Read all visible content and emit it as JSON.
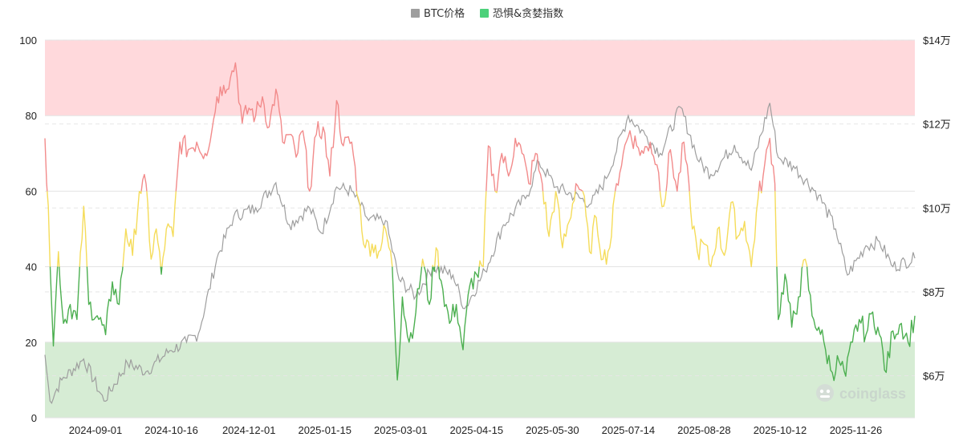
{
  "chart_data": {
    "type": "line",
    "title": "",
    "colors": {
      "btc": "#9e9e9e",
      "fg_green": "#4caf50",
      "fg_yellow": "#f5dc5a",
      "fg_red": "#f28b8b",
      "legend_btc": "#9e9e9e",
      "legend_fg": "#4cd17a",
      "greed_band": "#ffd9dc",
      "fear_band": "#d6ecd4"
    },
    "legend": {
      "placement": "top-center",
      "items": [
        {
          "name": "BTC价格",
          "color_key": "legend_btc"
        },
        {
          "name": "恐惧&贪婪指数",
          "color_key": "legend_fg"
        }
      ]
    },
    "x_tick_labels": [
      "2024-09-01",
      "2024-10-16",
      "2024-12-01",
      "2025-01-15",
      "2025-03-01",
      "2025-04-15",
      "2025-05-30",
      "2025-07-14",
      "2025-08-28",
      "2025-10-12",
      "2025-11-26"
    ],
    "left_axis": {
      "label": "",
      "range": [
        0,
        100
      ],
      "ticks": [
        "0",
        "20",
        "40",
        "60",
        "80",
        "100"
      ]
    },
    "right_axis": {
      "label": "",
      "range": [
        50000,
        140000
      ],
      "ticks": [
        "$6万",
        "$8万",
        "$10万",
        "$12万",
        "$14万"
      ],
      "tick_values": [
        60000,
        80000,
        100000,
        120000,
        140000
      ]
    },
    "zones": [
      {
        "name": "greed",
        "from": 80,
        "to": 100
      },
      {
        "name": "fear",
        "from": 0,
        "to": 20
      }
    ],
    "fg_thresholds": {
      "yellow_from": 40,
      "red_from": 60
    },
    "grid": true,
    "fg_anchors": [
      {
        "x": "2024-08-02",
        "y": 74
      },
      {
        "x": "2024-08-04",
        "y": 56
      },
      {
        "x": "2024-08-07",
        "y": 19
      },
      {
        "x": "2024-08-10",
        "y": 44
      },
      {
        "x": "2024-08-13",
        "y": 25
      },
      {
        "x": "2024-08-17",
        "y": 30
      },
      {
        "x": "2024-08-21",
        "y": 26
      },
      {
        "x": "2024-08-25",
        "y": 56
      },
      {
        "x": "2024-08-28",
        "y": 30
      },
      {
        "x": "2024-09-02",
        "y": 27
      },
      {
        "x": "2024-09-07",
        "y": 22
      },
      {
        "x": "2024-09-11",
        "y": 36
      },
      {
        "x": "2024-09-15",
        "y": 30
      },
      {
        "x": "2024-09-19",
        "y": 50
      },
      {
        "x": "2024-09-23",
        "y": 43
      },
      {
        "x": "2024-09-27",
        "y": 60
      },
      {
        "x": "2024-10-01",
        "y": 62
      },
      {
        "x": "2024-10-04",
        "y": 42
      },
      {
        "x": "2024-10-07",
        "y": 50
      },
      {
        "x": "2024-10-10",
        "y": 38
      },
      {
        "x": "2024-10-13",
        "y": 50
      },
      {
        "x": "2024-10-17",
        "y": 48
      },
      {
        "x": "2024-10-21",
        "y": 73
      },
      {
        "x": "2024-10-26",
        "y": 71
      },
      {
        "x": "2024-10-31",
        "y": 73
      },
      {
        "x": "2024-11-05",
        "y": 70
      },
      {
        "x": "2024-11-09",
        "y": 76
      },
      {
        "x": "2024-11-12",
        "y": 85
      },
      {
        "x": "2024-11-16",
        "y": 88
      },
      {
        "x": "2024-11-20",
        "y": 90
      },
      {
        "x": "2024-11-23",
        "y": 94
      },
      {
        "x": "2024-11-27",
        "y": 78
      },
      {
        "x": "2024-12-01",
        "y": 82
      },
      {
        "x": "2024-12-05",
        "y": 80
      },
      {
        "x": "2024-12-09",
        "y": 85
      },
      {
        "x": "2024-12-13",
        "y": 77
      },
      {
        "x": "2024-12-17",
        "y": 87
      },
      {
        "x": "2024-12-21",
        "y": 73
      },
      {
        "x": "2024-12-25",
        "y": 75
      },
      {
        "x": "2024-12-29",
        "y": 69
      },
      {
        "x": "2025-01-02",
        "y": 76
      },
      {
        "x": "2025-01-06",
        "y": 60
      },
      {
        "x": "2025-01-10",
        "y": 75
      },
      {
        "x": "2025-01-14",
        "y": 77
      },
      {
        "x": "2025-01-18",
        "y": 64
      },
      {
        "x": "2025-01-22",
        "y": 84
      },
      {
        "x": "2025-01-26",
        "y": 72
      },
      {
        "x": "2025-01-31",
        "y": 73
      },
      {
        "x": "2025-02-04",
        "y": 58
      },
      {
        "x": "2025-02-08",
        "y": 45
      },
      {
        "x": "2025-02-12",
        "y": 46
      },
      {
        "x": "2025-02-16",
        "y": 44
      },
      {
        "x": "2025-02-20",
        "y": 50
      },
      {
        "x": "2025-02-24",
        "y": 40
      },
      {
        "x": "2025-02-27",
        "y": 10
      },
      {
        "x": "2025-03-02",
        "y": 32
      },
      {
        "x": "2025-03-06",
        "y": 20
      },
      {
        "x": "2025-03-10",
        "y": 28
      },
      {
        "x": "2025-03-14",
        "y": 42
      },
      {
        "x": "2025-03-18",
        "y": 30
      },
      {
        "x": "2025-03-22",
        "y": 45
      },
      {
        "x": "2025-03-26",
        "y": 34
      },
      {
        "x": "2025-03-30",
        "y": 25
      },
      {
        "x": "2025-04-03",
        "y": 30
      },
      {
        "x": "2025-04-07",
        "y": 18
      },
      {
        "x": "2025-04-11",
        "y": 35
      },
      {
        "x": "2025-04-15",
        "y": 38
      },
      {
        "x": "2025-04-19",
        "y": 40
      },
      {
        "x": "2025-04-22",
        "y": 72
      },
      {
        "x": "2025-04-26",
        "y": 60
      },
      {
        "x": "2025-04-30",
        "y": 70
      },
      {
        "x": "2025-05-04",
        "y": 64
      },
      {
        "x": "2025-05-08",
        "y": 74
      },
      {
        "x": "2025-05-12",
        "y": 70
      },
      {
        "x": "2025-05-16",
        "y": 62
      },
      {
        "x": "2025-05-20",
        "y": 70
      },
      {
        "x": "2025-05-24",
        "y": 62
      },
      {
        "x": "2025-05-28",
        "y": 48
      },
      {
        "x": "2025-06-01",
        "y": 60
      },
      {
        "x": "2025-06-05",
        "y": 45
      },
      {
        "x": "2025-06-09",
        "y": 52
      },
      {
        "x": "2025-06-13",
        "y": 62
      },
      {
        "x": "2025-06-17",
        "y": 60
      },
      {
        "x": "2025-06-21",
        "y": 44
      },
      {
        "x": "2025-06-25",
        "y": 53
      },
      {
        "x": "2025-06-29",
        "y": 42
      },
      {
        "x": "2025-07-03",
        "y": 45
      },
      {
        "x": "2025-07-07",
        "y": 62
      },
      {
        "x": "2025-07-11",
        "y": 70
      },
      {
        "x": "2025-07-15",
        "y": 76
      },
      {
        "x": "2025-07-19",
        "y": 72
      },
      {
        "x": "2025-07-23",
        "y": 70
      },
      {
        "x": "2025-07-27",
        "y": 73
      },
      {
        "x": "2025-07-31",
        "y": 67
      },
      {
        "x": "2025-08-04",
        "y": 56
      },
      {
        "x": "2025-08-08",
        "y": 71
      },
      {
        "x": "2025-08-12",
        "y": 60
      },
      {
        "x": "2025-08-16",
        "y": 73
      },
      {
        "x": "2025-08-20",
        "y": 55
      },
      {
        "x": "2025-08-24",
        "y": 44
      },
      {
        "x": "2025-08-28",
        "y": 46
      },
      {
        "x": "2025-09-01",
        "y": 40
      },
      {
        "x": "2025-09-05",
        "y": 50
      },
      {
        "x": "2025-09-09",
        "y": 43
      },
      {
        "x": "2025-09-13",
        "y": 57
      },
      {
        "x": "2025-09-17",
        "y": 48
      },
      {
        "x": "2025-09-21",
        "y": 52
      },
      {
        "x": "2025-09-25",
        "y": 40
      },
      {
        "x": "2025-09-29",
        "y": 58
      },
      {
        "x": "2025-10-02",
        "y": 64
      },
      {
        "x": "2025-10-06",
        "y": 74
      },
      {
        "x": "2025-10-09",
        "y": 62
      },
      {
        "x": "2025-10-11",
        "y": 26
      },
      {
        "x": "2025-10-15",
        "y": 38
      },
      {
        "x": "2025-10-19",
        "y": 24
      },
      {
        "x": "2025-10-23",
        "y": 32
      },
      {
        "x": "2025-10-27",
        "y": 42
      },
      {
        "x": "2025-10-31",
        "y": 27
      },
      {
        "x": "2025-11-04",
        "y": 24
      },
      {
        "x": "2025-11-08",
        "y": 18
      },
      {
        "x": "2025-11-12",
        "y": 12
      },
      {
        "x": "2025-11-16",
        "y": 15
      },
      {
        "x": "2025-11-20",
        "y": 11
      },
      {
        "x": "2025-11-24",
        "y": 20
      },
      {
        "x": "2025-11-28",
        "y": 26
      },
      {
        "x": "2025-12-02",
        "y": 22
      },
      {
        "x": "2025-12-06",
        "y": 28
      },
      {
        "x": "2025-12-10",
        "y": 22
      },
      {
        "x": "2025-12-14",
        "y": 12
      },
      {
        "x": "2025-12-18",
        "y": 23
      },
      {
        "x": "2025-12-23",
        "y": 25
      },
      {
        "x": "2025-12-27",
        "y": 20
      },
      {
        "x": "2025-12-31",
        "y": 27
      }
    ],
    "btc_anchors": [
      {
        "x": "2024-08-02",
        "y": 65000
      },
      {
        "x": "2024-08-05",
        "y": 54000
      },
      {
        "x": "2024-08-12",
        "y": 59000
      },
      {
        "x": "2024-08-25",
        "y": 64000
      },
      {
        "x": "2024-09-06",
        "y": 54000
      },
      {
        "x": "2024-09-20",
        "y": 63000
      },
      {
        "x": "2024-10-01",
        "y": 61000
      },
      {
        "x": "2024-10-15",
        "y": 66000
      },
      {
        "x": "2024-10-25",
        "y": 68000
      },
      {
        "x": "2024-11-01",
        "y": 70000
      },
      {
        "x": "2024-11-12",
        "y": 88000
      },
      {
        "x": "2024-11-22",
        "y": 98000
      },
      {
        "x": "2024-12-05",
        "y": 100000
      },
      {
        "x": "2024-12-17",
        "y": 106000
      },
      {
        "x": "2024-12-25",
        "y": 96000
      },
      {
        "x": "2025-01-06",
        "y": 100000
      },
      {
        "x": "2025-01-13",
        "y": 94000
      },
      {
        "x": "2025-01-22",
        "y": 105000
      },
      {
        "x": "2025-01-31",
        "y": 104000
      },
      {
        "x": "2025-02-10",
        "y": 97000
      },
      {
        "x": "2025-02-20",
        "y": 97000
      },
      {
        "x": "2025-02-28",
        "y": 83000
      },
      {
        "x": "2025-03-10",
        "y": 79000
      },
      {
        "x": "2025-03-20",
        "y": 86000
      },
      {
        "x": "2025-04-01",
        "y": 84000
      },
      {
        "x": "2025-04-08",
        "y": 76000
      },
      {
        "x": "2025-04-20",
        "y": 85000
      },
      {
        "x": "2025-05-01",
        "y": 96000
      },
      {
        "x": "2025-05-15",
        "y": 103000
      },
      {
        "x": "2025-05-22",
        "y": 111000
      },
      {
        "x": "2025-06-01",
        "y": 105000
      },
      {
        "x": "2025-06-22",
        "y": 101000
      },
      {
        "x": "2025-07-01",
        "y": 107000
      },
      {
        "x": "2025-07-14",
        "y": 122000
      },
      {
        "x": "2025-07-25",
        "y": 117000
      },
      {
        "x": "2025-08-02",
        "y": 113000
      },
      {
        "x": "2025-08-14",
        "y": 124000
      },
      {
        "x": "2025-08-25",
        "y": 111000
      },
      {
        "x": "2025-09-01",
        "y": 108000
      },
      {
        "x": "2025-09-15",
        "y": 115000
      },
      {
        "x": "2025-09-25",
        "y": 109000
      },
      {
        "x": "2025-10-06",
        "y": 125000
      },
      {
        "x": "2025-10-11",
        "y": 112000
      },
      {
        "x": "2025-10-20",
        "y": 110000
      },
      {
        "x": "2025-11-04",
        "y": 103000
      },
      {
        "x": "2025-11-14",
        "y": 95000
      },
      {
        "x": "2025-11-21",
        "y": 84000
      },
      {
        "x": "2025-12-02",
        "y": 91000
      },
      {
        "x": "2025-12-10",
        "y": 92000
      },
      {
        "x": "2025-12-18",
        "y": 86000
      },
      {
        "x": "2025-12-31",
        "y": 88000
      }
    ],
    "x_range": [
      "2024-08-02",
      "2025-12-31"
    ]
  },
  "watermark": {
    "text": "coinglass",
    "icon": "coinglass-logo-icon"
  }
}
